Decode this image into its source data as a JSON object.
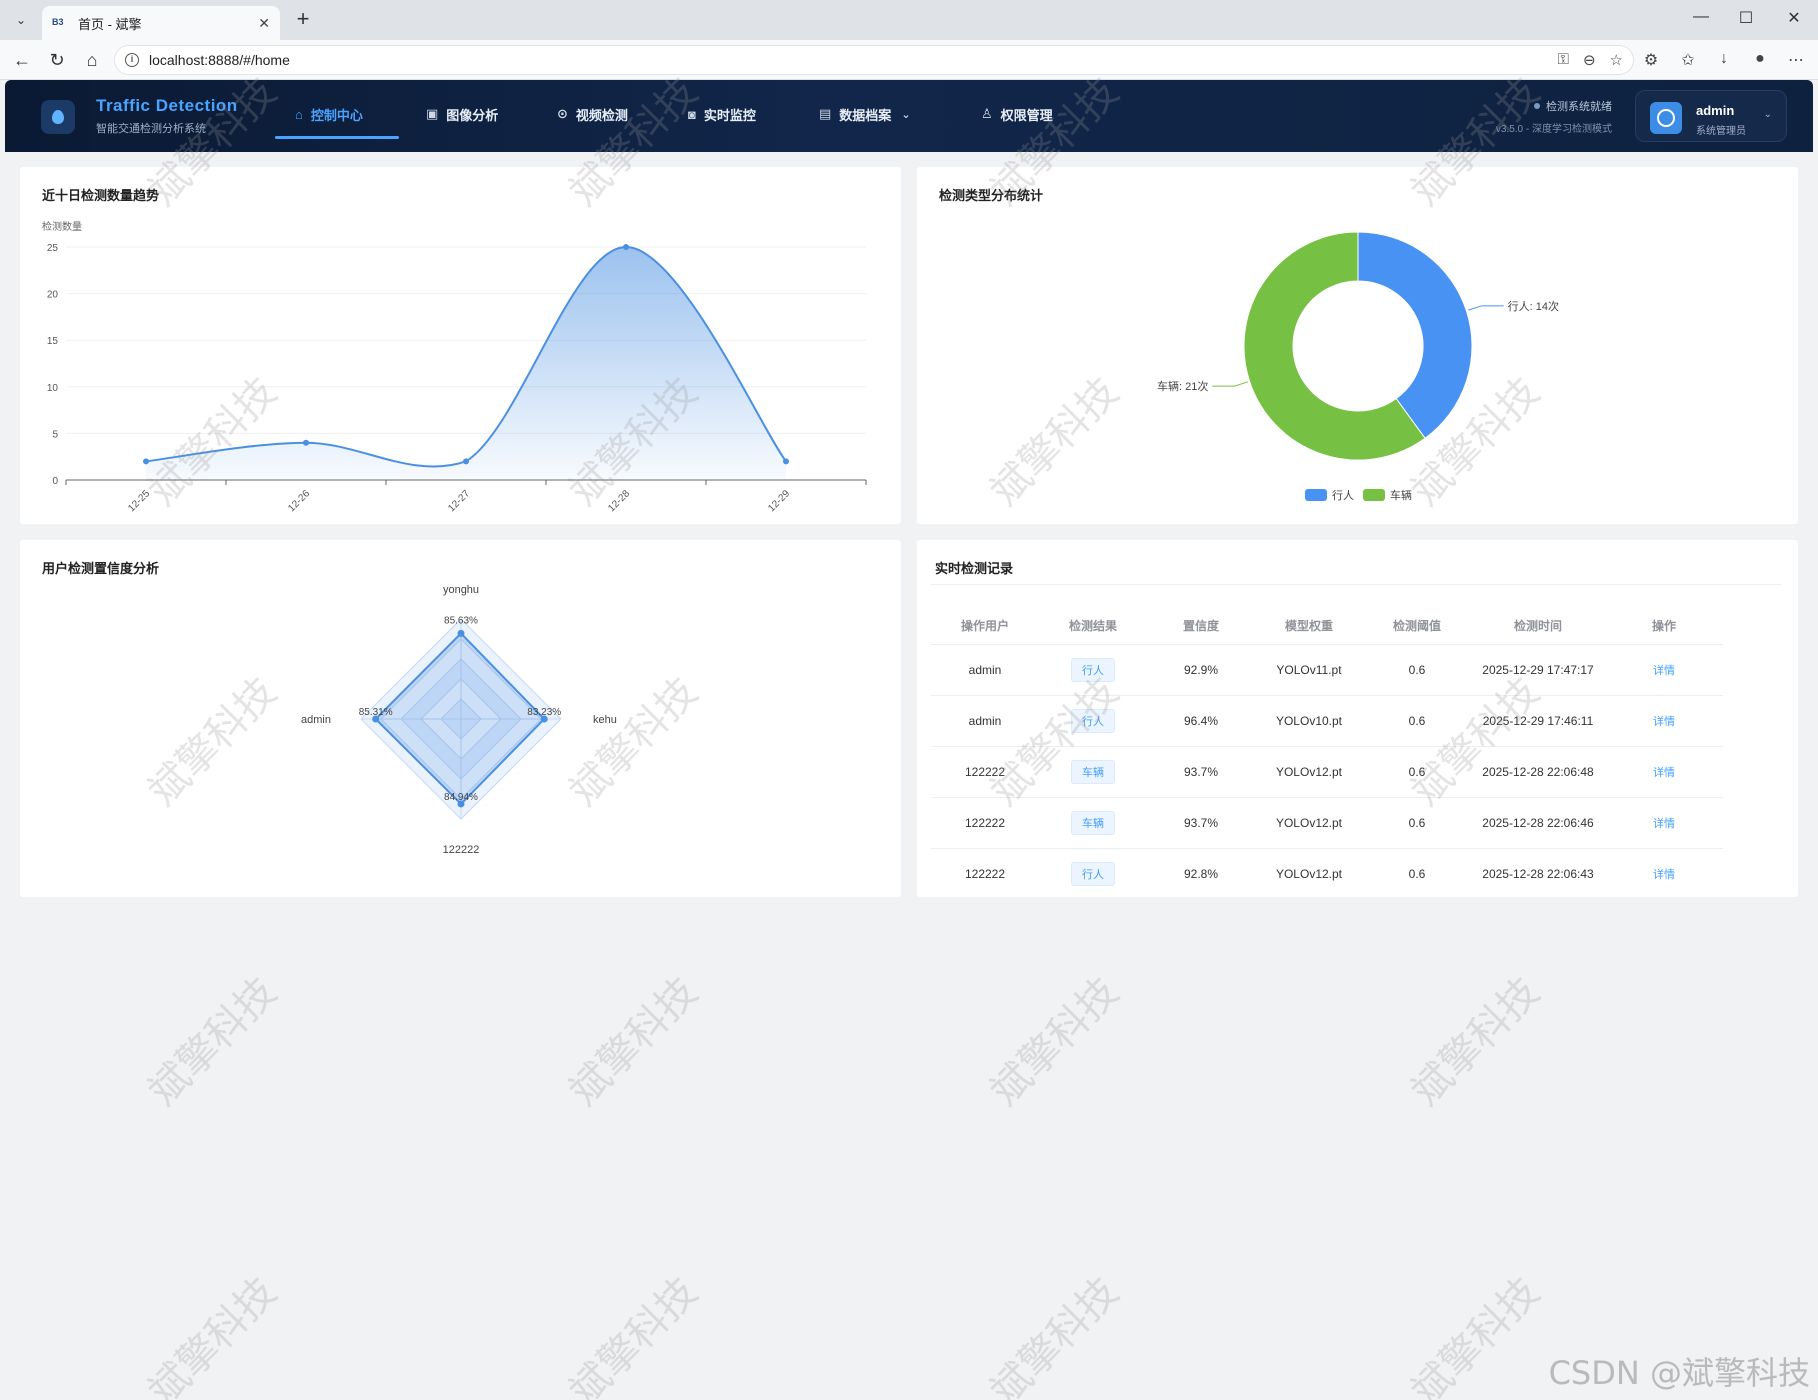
{
  "browser": {
    "tab_title": "首页 - 斌擎",
    "tab_favicon": "B3",
    "url": "localhost:8888/#/home"
  },
  "header": {
    "brand_title": "Traffic Detection",
    "brand_subtitle": "智能交通检测分析系统",
    "nav": [
      {
        "label": "控制中心",
        "icon": "home-icon"
      },
      {
        "label": "图像分析",
        "icon": "image-icon"
      },
      {
        "label": "视频检测",
        "icon": "play-icon"
      },
      {
        "label": "实时监控",
        "icon": "camera-icon"
      },
      {
        "label": "数据档案",
        "icon": "document-icon"
      },
      {
        "label": "权限管理",
        "icon": "user-icon"
      }
    ],
    "status_text": "检测系统就绪",
    "version_text": "v3.5.0 - 深度学习检测模式",
    "user_name": "admin",
    "user_role": "系统管理员"
  },
  "trend_card": {
    "title": "近十日检测数量趋势",
    "chart_data": {
      "type": "area",
      "ylabel": "检测数量",
      "x": [
        "12-25",
        "12-26",
        "12-27",
        "12-28",
        "12-29"
      ],
      "values": [
        2,
        4,
        2,
        25,
        2
      ],
      "yticks": [
        0,
        5,
        10,
        15,
        20,
        25
      ],
      "ylim": [
        0,
        25
      ],
      "color": "#4a90e2"
    }
  },
  "pie_card": {
    "title": "检测类型分布统计",
    "chart_data": {
      "type": "pie",
      "slices": [
        {
          "name": "行人",
          "value": 14,
          "label": "行人: 14次",
          "color": "#4892f3"
        },
        {
          "name": "车辆",
          "value": 21,
          "label": "车辆: 21次",
          "color": "#76c043"
        }
      ],
      "legend": "bottom"
    }
  },
  "radar_card": {
    "title": "用户检测置信度分析",
    "chart_data": {
      "type": "radar",
      "axes": [
        "yonghu",
        "kehu",
        "122222",
        "admin"
      ],
      "values": [
        85.63,
        83.23,
        84.94,
        85.31
      ],
      "value_labels": [
        "85.63%",
        "83.23%",
        "84.94%",
        "85.31%"
      ],
      "max": 100,
      "color": "#4a90e2"
    }
  },
  "records_card": {
    "title": "实时检测记录",
    "columns": [
      "操作用户",
      "检测结果",
      "置信度",
      "模型权重",
      "检测阈值",
      "检测时间",
      "操作"
    ],
    "rows": [
      {
        "user": "admin",
        "result": "行人",
        "confidence": "92.9%",
        "model": "YOLOv11.pt",
        "threshold": "0.6",
        "time": "2025-12-29 17:47:17",
        "action": "详情"
      },
      {
        "user": "admin",
        "result": "行人",
        "confidence": "96.4%",
        "model": "YOLOv10.pt",
        "threshold": "0.6",
        "time": "2025-12-29 17:46:11",
        "action": "详情"
      },
      {
        "user": "122222",
        "result": "车辆",
        "confidence": "93.7%",
        "model": "YOLOv12.pt",
        "threshold": "0.6",
        "time": "2025-12-28 22:06:48",
        "action": "详情"
      },
      {
        "user": "122222",
        "result": "车辆",
        "confidence": "93.7%",
        "model": "YOLOv12.pt",
        "threshold": "0.6",
        "time": "2025-12-28 22:06:46",
        "action": "详情"
      },
      {
        "user": "122222",
        "result": "行人",
        "confidence": "92.8%",
        "model": "YOLOv12.pt",
        "threshold": "0.6",
        "time": "2025-12-28 22:06:43",
        "action": "详情"
      }
    ]
  },
  "watermark": {
    "text": "斌擎科技",
    "csdn_text": "CSDN @斌擎科技"
  }
}
